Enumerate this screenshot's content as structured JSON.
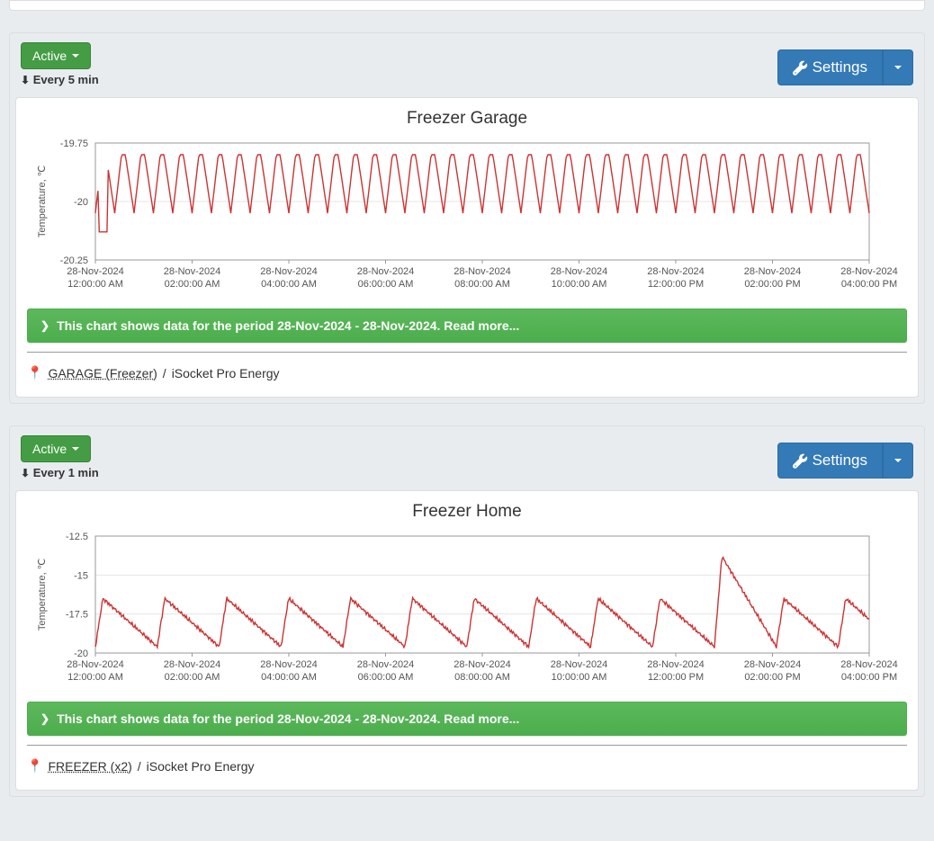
{
  "panels": [
    {
      "id": "garage",
      "status_label": "Active",
      "interval_label": "Every 5 min",
      "settings_label": "Settings",
      "chart": {
        "title": "Freezer Garage",
        "ylabel": "Temperature, ℃",
        "line_color": "#cc3333",
        "grid_color": "#e5e5e5",
        "axis_color": "#999999",
        "ylim": [
          -20.25,
          -19.75
        ],
        "yticks": [
          -20.25,
          -20,
          -19.75
        ],
        "xticks": [
          {
            "date": "28-Nov-2024",
            "time": "12:00:00 AM"
          },
          {
            "date": "28-Nov-2024",
            "time": "02:00:00 AM"
          },
          {
            "date": "28-Nov-2024",
            "time": "04:00:00 AM"
          },
          {
            "date": "28-Nov-2024",
            "time": "06:00:00 AM"
          },
          {
            "date": "28-Nov-2024",
            "time": "08:00:00 AM"
          },
          {
            "date": "28-Nov-2024",
            "time": "10:00:00 AM"
          },
          {
            "date": "28-Nov-2024",
            "time": "12:00:00 PM"
          },
          {
            "date": "28-Nov-2024",
            "time": "02:00:00 PM"
          },
          {
            "date": "28-Nov-2024",
            "time": "04:00:00 PM"
          }
        ],
        "wave": {
          "type": "triangle",
          "cycles": 40,
          "low": -20.05,
          "high": -19.8,
          "initial_dip_x": 0.01,
          "initial_dip_y": -20.13
        }
      },
      "info_text": "This chart shows data for the period 28-Nov-2024 - 28-Nov-2024. Read more...",
      "location_name": "GARAGE (Freezer)",
      "device_name": "iSocket Pro Energy"
    },
    {
      "id": "home",
      "status_label": "Active",
      "interval_label": "Every 1 min",
      "settings_label": "Settings",
      "chart": {
        "title": "Freezer Home",
        "ylabel": "Temperature, ℃",
        "line_color": "#cc3333",
        "grid_color": "#e5e5e5",
        "axis_color": "#999999",
        "ylim": [
          -20,
          -12.5
        ],
        "yticks": [
          -20,
          -17.5,
          -15,
          -12.5
        ],
        "xticks": [
          {
            "date": "28-Nov-2024",
            "time": "12:00:00 AM"
          },
          {
            "date": "28-Nov-2024",
            "time": "02:00:00 AM"
          },
          {
            "date": "28-Nov-2024",
            "time": "04:00:00 AM"
          },
          {
            "date": "28-Nov-2024",
            "time": "06:00:00 AM"
          },
          {
            "date": "28-Nov-2024",
            "time": "08:00:00 AM"
          },
          {
            "date": "28-Nov-2024",
            "time": "10:00:00 AM"
          },
          {
            "date": "28-Nov-2024",
            "time": "12:00:00 PM"
          },
          {
            "date": "28-Nov-2024",
            "time": "02:00:00 PM"
          },
          {
            "date": "28-Nov-2024",
            "time": "04:00:00 PM"
          }
        ],
        "wave": {
          "type": "sawtooth-noisy",
          "cycles": 12.5,
          "low": -19.6,
          "high": -16.5,
          "spike_cycle": 10,
          "spike_high": -13.8
        }
      },
      "info_text": "This chart shows data for the period 28-Nov-2024 - 28-Nov-2024. Read more...",
      "location_name": "FREEZER (x2)",
      "device_name": "iSocket Pro Energy"
    }
  ],
  "colors": {
    "success_btn": "#449d44",
    "primary_btn": "#337ab7",
    "info_bar": "#5cb85c"
  }
}
